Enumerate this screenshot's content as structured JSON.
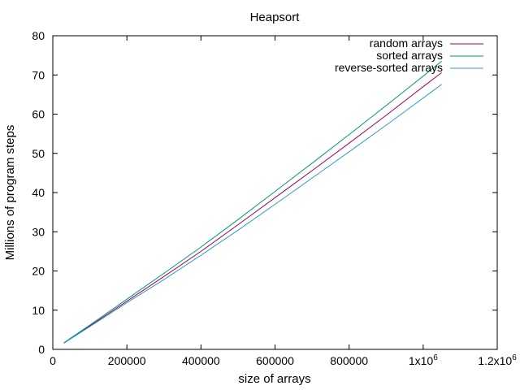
{
  "chart_data": {
    "type": "line",
    "title": "Heapsort",
    "xlabel": "size of arrays",
    "ylabel": "Millions of program steps",
    "xlim": [
      0,
      1200000
    ],
    "ylim": [
      0,
      80
    ],
    "xticks": [
      0,
      200000,
      400000,
      600000,
      800000,
      1000000,
      1200000
    ],
    "xtick_labels": [
      "0",
      "200000",
      "400000",
      "600000",
      "800000",
      "1x10",
      "1.2x10"
    ],
    "xtick_superscripts": [
      "",
      "",
      "",
      "",
      "",
      "6",
      "6"
    ],
    "yticks": [
      0,
      10,
      20,
      30,
      40,
      50,
      60,
      70,
      80
    ],
    "ytick_labels": [
      "0",
      "10",
      "20",
      "30",
      "40",
      "50",
      "60",
      "70",
      "80"
    ],
    "grid": false,
    "legend_position": "top-right",
    "series": [
      {
        "name": "random arrays",
        "color": "#990066",
        "x": [
          30000,
          100000,
          200000,
          300000,
          400000,
          500000,
          600000,
          700000,
          800000,
          900000,
          1000000,
          1050000
        ],
        "values": [
          1.6,
          6.0,
          12.3,
          18.6,
          25.0,
          31.8,
          38.7,
          45.6,
          52.6,
          59.7,
          67.0,
          70.6
        ]
      },
      {
        "name": "sorted arrays",
        "color": "#009966",
        "x": [
          30000,
          100000,
          200000,
          300000,
          400000,
          500000,
          600000,
          700000,
          800000,
          900000,
          1000000,
          1050000
        ],
        "values": [
          1.7,
          6.2,
          12.8,
          19.4,
          26.1,
          33.1,
          40.3,
          47.5,
          54.8,
          62.2,
          69.7,
          73.5
        ]
      },
      {
        "name": "reverse-sorted arrays",
        "color": "#3399cc",
        "x": [
          30000,
          100000,
          200000,
          300000,
          400000,
          500000,
          600000,
          700000,
          800000,
          900000,
          1000000,
          1050000
        ],
        "values": [
          1.6,
          5.8,
          11.9,
          17.8,
          24.0,
          30.4,
          37.0,
          43.7,
          50.4,
          57.2,
          64.1,
          67.6
        ]
      }
    ]
  }
}
